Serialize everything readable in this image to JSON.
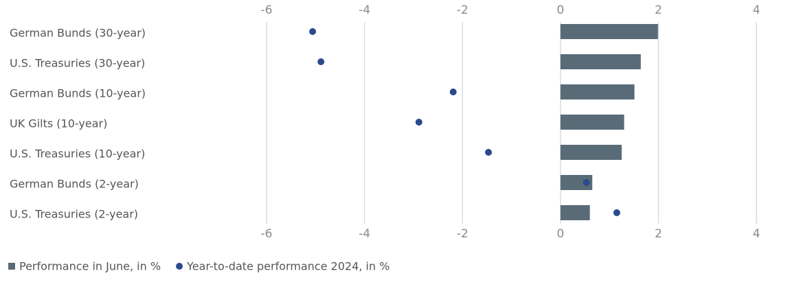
{
  "chart_data": {
    "type": "bar",
    "orientation": "horizontal",
    "categories": [
      "German Bunds (30-year)",
      "U.S. Treasuries (30-year)",
      "German Bunds (10-year)",
      "UK Gilts (10-year)",
      "U.S. Treasuries (10-year)",
      "German Bunds (2-year)",
      "U.S. Treasuries (2-year)"
    ],
    "series": [
      {
        "name": "Performance in June, in %",
        "mark": "bar",
        "color": "#5a6b78",
        "values": [
          1.99,
          1.64,
          1.51,
          1.3,
          1.25,
          0.65,
          0.6
        ]
      },
      {
        "name": "Year-to-date performance 2024, in %",
        "mark": "dot",
        "color": "#2b4a8b",
        "values": [
          -5.06,
          -4.89,
          -2.19,
          -2.89,
          -1.47,
          0.53,
          1.15
        ]
      }
    ],
    "xlim": [
      -6,
      4
    ],
    "xticks": [
      -6,
      -4,
      -2,
      0,
      2,
      4
    ],
    "grid": true,
    "legend": "bottom-left"
  }
}
